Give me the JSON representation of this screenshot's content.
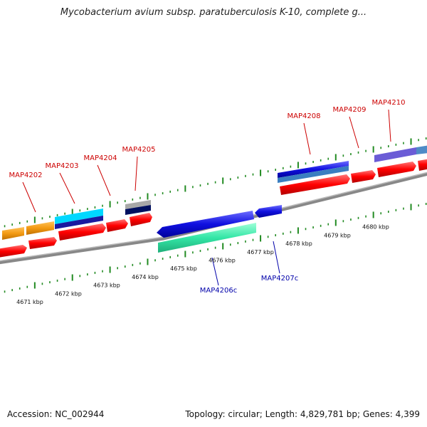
{
  "title": "Mycobacterium avium subsp. paratuberculosis K-10, complete g...",
  "footer": {
    "accession": "Accession: NC_002944",
    "summary": "Topology: circular; Length: 4,829,781 bp; Genes: 4,399"
  },
  "scale_labels": [
    "4671 kbp",
    "4672 kbp",
    "4673 kbp",
    "4674 kbp",
    "4675 kbp",
    "4676 kbp",
    "4677 kbp",
    "4678 kbp",
    "4679 kbp",
    "4680 kbp"
  ],
  "forward_genes": [
    "MAP4202",
    "MAP4203",
    "MAP4204",
    "MAP4205",
    "MAP4208",
    "MAP4209",
    "MAP4210"
  ],
  "reverse_genes": [
    "MAP4206c",
    "MAP4207c"
  ],
  "colors": {
    "forward_label": "#cc0000",
    "reverse_label": "#0000aa",
    "cds": "#ff0000",
    "ticks": "#228b22",
    "backbone": "#808080"
  }
}
